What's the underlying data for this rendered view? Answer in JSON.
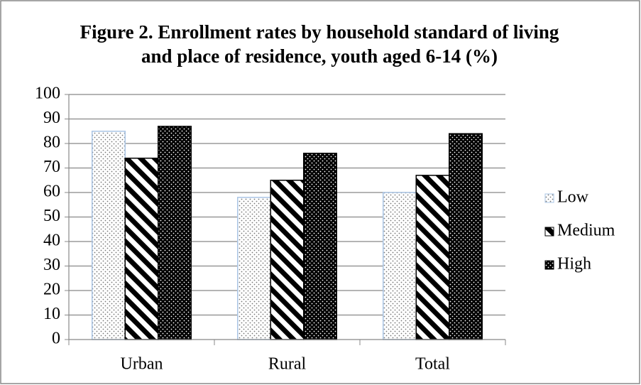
{
  "chart_data": {
    "type": "bar",
    "title": "Figure 2. Enrollment rates by household standard of living and place of residence, youth aged 6-14 (%)",
    "categories": [
      "Urban",
      "Rural",
      "Total"
    ],
    "series": [
      {
        "name": "Low",
        "color": "#a9c4e4",
        "values": [
          85,
          58,
          60
        ]
      },
      {
        "name": "Medium",
        "color": "#000000",
        "values": [
          74,
          65,
          67
        ]
      },
      {
        "name": "High",
        "color": "#000000",
        "values": [
          87,
          76,
          84
        ]
      }
    ],
    "ylim": [
      0,
      100
    ],
    "yticks": [
      0,
      10,
      20,
      30,
      40,
      50,
      60,
      70,
      80,
      90,
      100
    ],
    "grid": true,
    "legend": "right"
  }
}
